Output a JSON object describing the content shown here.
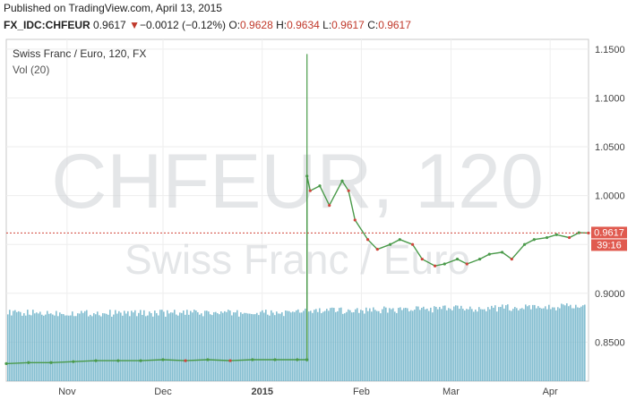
{
  "header": {
    "published": "Published on TradingView.com, April 13, 2015",
    "symbol": "FX_IDC:CHFEUR",
    "last": "0.9617",
    "change_arrow": "▼",
    "change": "−0.0012 (−0.12%)",
    "open_label": "O:",
    "open": "0.9628",
    "high_label": "H:",
    "high": "0.9634",
    "low_label": "L:",
    "low": "0.9617",
    "close_label": "C:",
    "close": "0.9617"
  },
  "legend": {
    "title": "Swiss Franc / Euro, 120, FX",
    "volume": "Vol (20)"
  },
  "watermark": {
    "line1": "CHFEUR, 120",
    "line2": "Swiss Franc / Euro"
  },
  "price_badge": {
    "value": "0.9617",
    "countdown": "39:16"
  },
  "colors": {
    "up": "#4a9a4a",
    "down": "#d0453c",
    "volume": "#6fb3c9",
    "price_line": "#d0453c",
    "badge": "#e05a4f"
  },
  "chart_data": {
    "type": "line",
    "title": "Swiss Franc / Euro, 120, FX",
    "xlabel": "",
    "ylabel": "",
    "ylim": [
      0.81,
      1.16
    ],
    "y_ticks": [
      "1.1500",
      "1.1000",
      "1.0500",
      "1.0000",
      "0.9500",
      "0.9000",
      "0.8500"
    ],
    "y_tick_values": [
      1.15,
      1.1,
      1.05,
      1.0,
      0.95,
      0.9,
      0.85
    ],
    "x_ticks": [
      "Nov",
      "Dec",
      "2015",
      "Feb",
      "Mar",
      "Apr"
    ],
    "x_tick_dates": [
      "2014-11-01",
      "2014-12-01",
      "2015-01-01",
      "2015-02-01",
      "2015-03-01",
      "2015-04-01"
    ],
    "xlim": [
      "2014-10-13",
      "2015-04-13"
    ],
    "grid": true,
    "legend": "top-left",
    "last_price": 0.9617,
    "series": [
      {
        "x": [
          "2014-10-13",
          "2014-10-20",
          "2014-10-27",
          "2014-11-03",
          "2014-11-10",
          "2014-11-17",
          "2014-11-24",
          "2014-12-01",
          "2014-12-08",
          "2014-12-15",
          "2014-12-22",
          "2014-12-29",
          "2015-01-05",
          "2015-01-12",
          "2015-01-15",
          "2015-01-15",
          "2015-01-16",
          "2015-01-19",
          "2015-01-22",
          "2015-01-26",
          "2015-01-28",
          "2015-01-30",
          "2015-02-03",
          "2015-02-06",
          "2015-02-10",
          "2015-02-13",
          "2015-02-17",
          "2015-02-20",
          "2015-02-24",
          "2015-02-27",
          "2015-03-03",
          "2015-03-06",
          "2015-03-10",
          "2015-03-13",
          "2015-03-17",
          "2015-03-20",
          "2015-03-24",
          "2015-03-27",
          "2015-03-31",
          "2015-04-03",
          "2015-04-07",
          "2015-04-10",
          "2015-04-13"
        ],
        "values": [
          0.828,
          0.829,
          0.829,
          0.83,
          0.831,
          0.831,
          0.831,
          0.832,
          0.831,
          0.832,
          0.831,
          0.832,
          0.832,
          0.832,
          0.832,
          1.02,
          1.005,
          1.01,
          0.99,
          1.015,
          1.005,
          0.975,
          0.955,
          0.945,
          0.95,
          0.955,
          0.95,
          0.935,
          0.928,
          0.93,
          0.935,
          0.93,
          0.935,
          0.94,
          0.942,
          0.935,
          0.95,
          0.955,
          0.957,
          0.96,
          0.957,
          0.962,
          0.9617
        ]
      }
    ],
    "volume": {
      "label": "Vol (20)",
      "ylim_note": "uniform bars across range"
    }
  }
}
